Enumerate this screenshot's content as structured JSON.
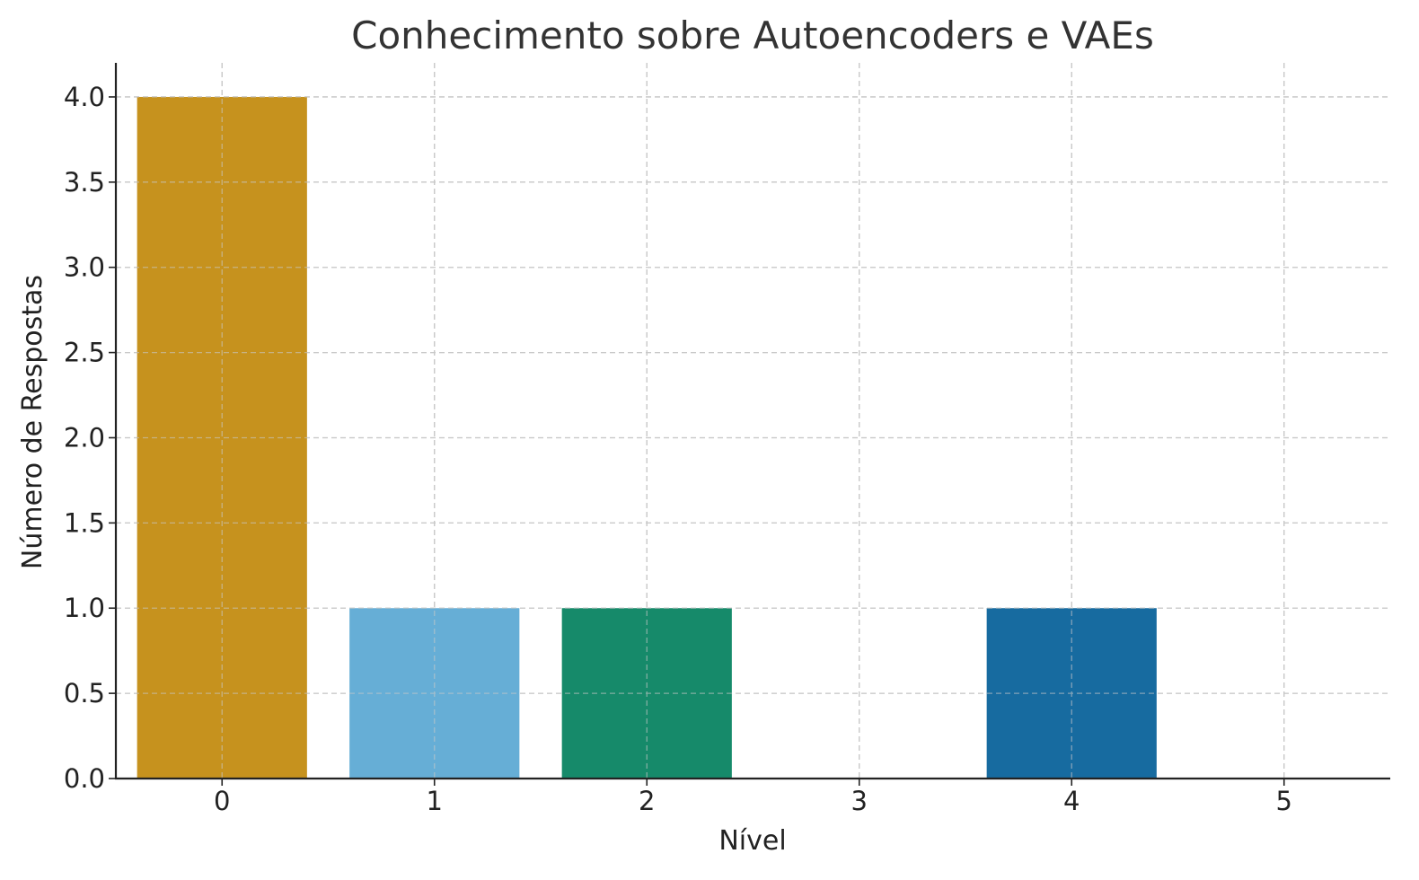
{
  "chart_data": {
    "type": "bar",
    "title": "Conhecimento sobre Autoencoders e VAEs",
    "xlabel": "Nível",
    "ylabel": "Número de Respostas",
    "categories": [
      "0",
      "1",
      "2",
      "3",
      "4",
      "5"
    ],
    "values": [
      4,
      1,
      1,
      0,
      1,
      0
    ],
    "colors": [
      "#c6921e",
      "#66aed6",
      "#168a6a",
      "#c6921e",
      "#176ba0",
      "#66aed6"
    ],
    "xlim": [
      -0.5,
      5.5
    ],
    "ylim": [
      0,
      4.2
    ],
    "yticks": [
      "0.0",
      "0.5",
      "1.0",
      "1.5",
      "2.0",
      "2.5",
      "3.0",
      "3.5",
      "4.0"
    ],
    "grid": true
  }
}
